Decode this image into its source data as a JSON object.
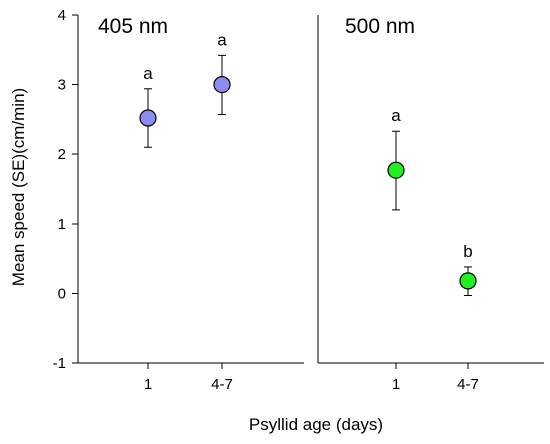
{
  "chart_data": {
    "type": "scatter",
    "ylabel": "Mean speed (SE)(cm/min)",
    "xlabel": "Psyllid age (days)",
    "ylim": [
      -1,
      4
    ],
    "yticks": [
      "-1",
      "0",
      "1",
      "2",
      "3",
      "4"
    ],
    "grid": false,
    "panels": [
      {
        "title": "405 nm",
        "color": "#8C8CF0",
        "categories": [
          "1",
          "4-7"
        ],
        "points": [
          {
            "category": "1",
            "value": 2.52,
            "lower": 2.1,
            "upper": 2.94,
            "label": "a"
          },
          {
            "category": "4-7",
            "value": 3.0,
            "lower": 2.57,
            "upper": 3.42,
            "label": "a"
          }
        ]
      },
      {
        "title": "500 nm",
        "color": "#22EE22",
        "categories": [
          "1",
          "4-7"
        ],
        "points": [
          {
            "category": "1",
            "value": 1.77,
            "lower": 1.2,
            "upper": 2.33,
            "label": "a"
          },
          {
            "category": "4-7",
            "value": 0.18,
            "lower": -0.03,
            "upper": 0.38,
            "label": "b"
          }
        ]
      }
    ]
  }
}
